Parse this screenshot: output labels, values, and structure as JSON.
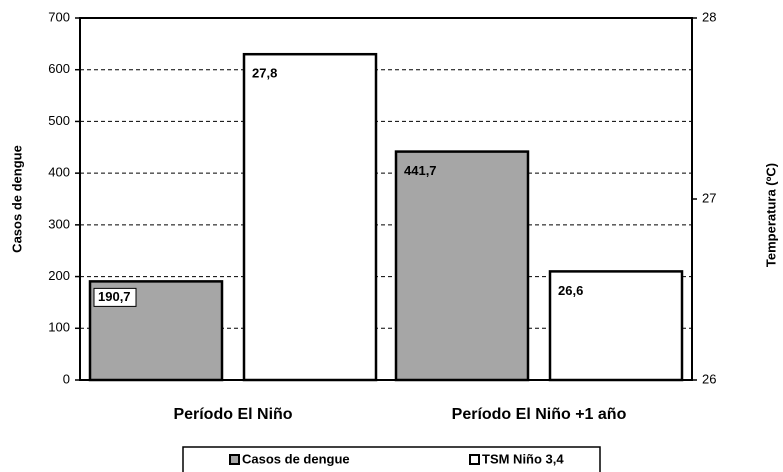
{
  "chart_data": {
    "type": "bar",
    "categories": [
      "Período El Niño",
      "Período El Niño +1 año"
    ],
    "series": [
      {
        "name": "Casos de dengue",
        "color": "#a6a6a6",
        "values": [
          190.7,
          441.7
        ],
        "value_labels": [
          "190,7",
          "441,7"
        ]
      },
      {
        "name": "TSM Niño 3,4",
        "color": "#ffffff",
        "values": [
          27.8,
          26.6
        ],
        "value_labels": [
          "27,8",
          "26,6"
        ],
        "axis": "y2"
      }
    ],
    "y_label": "Casos de dengue",
    "y2_label": "Temperatura (ºC)",
    "ylim": [
      0,
      700
    ],
    "yticks": [
      0,
      100,
      200,
      300,
      400,
      500,
      600,
      700
    ],
    "y2lim": [
      26,
      28
    ],
    "y2ticks": [
      26,
      27,
      28
    ],
    "grid": true
  }
}
